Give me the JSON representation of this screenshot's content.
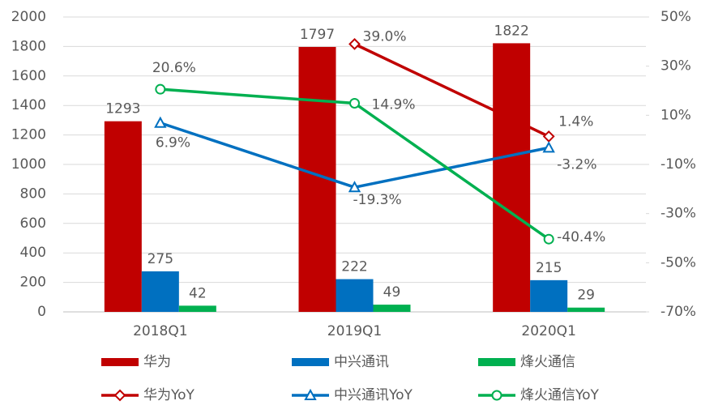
{
  "chart_data": {
    "type": "bar",
    "categories": [
      "2018Q1",
      "2019Q1",
      "2020Q1"
    ],
    "series": [
      {
        "name": "华为",
        "type": "bar",
        "color": "#c00000",
        "values": [
          1293,
          1797,
          1822
        ]
      },
      {
        "name": "中兴通讯",
        "type": "bar",
        "color": "#0070c0",
        "values": [
          275,
          222,
          215
        ]
      },
      {
        "name": "烽火通信",
        "type": "bar",
        "color": "#00b050",
        "values": [
          42,
          49,
          29
        ]
      },
      {
        "name": "华为YoY",
        "type": "line",
        "axis": "y2",
        "marker": "diamond",
        "color": "#c00000",
        "values": [
          null,
          39.0,
          1.4
        ],
        "value_labels": [
          null,
          "39.0%",
          "1.4%"
        ]
      },
      {
        "name": "中兴通讯YoY",
        "type": "line",
        "axis": "y2",
        "marker": "triangle",
        "color": "#0070c0",
        "values": [
          6.9,
          -19.3,
          -3.2
        ],
        "value_labels": [
          "6.9%",
          "-19.3%",
          "-3.2%"
        ]
      },
      {
        "name": "烽火通信YoY",
        "type": "line",
        "axis": "y2",
        "marker": "circle",
        "color": "#00b050",
        "values": [
          20.6,
          14.9,
          -40.4
        ],
        "value_labels": [
          "20.6%",
          "14.9%",
          "-40.4%"
        ]
      }
    ],
    "ylim": [
      0,
      2000
    ],
    "yticks": [
      0,
      200,
      400,
      600,
      800,
      1000,
      1200,
      1400,
      1600,
      1800,
      2000
    ],
    "y2lim": [
      -70,
      50
    ],
    "y2ticks": [
      {
        "value": -70,
        "label": "-70%"
      },
      {
        "value": -50,
        "label": "-50%"
      },
      {
        "value": -30,
        "label": "-30%"
      },
      {
        "value": -10,
        "label": "-10%"
      },
      {
        "value": 10,
        "label": "10%"
      },
      {
        "value": 30,
        "label": "30%"
      },
      {
        "value": 50,
        "label": "50%"
      }
    ],
    "grid": true,
    "legend": "bottom"
  }
}
